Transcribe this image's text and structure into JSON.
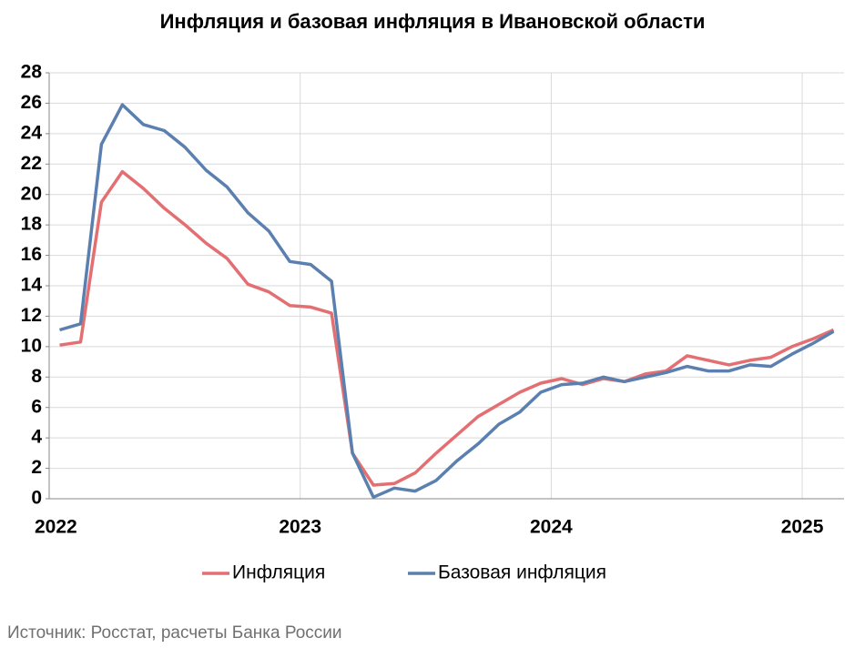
{
  "chart_data": {
    "type": "line",
    "title": "Инфляция и базовая инфляция в Ивановской области",
    "categories": [
      "2022",
      null,
      null,
      null,
      null,
      null,
      null,
      null,
      null,
      null,
      null,
      null,
      "2023",
      null,
      null,
      null,
      null,
      null,
      null,
      null,
      null,
      null,
      null,
      null,
      "2024",
      null,
      null,
      null,
      null,
      null,
      null,
      null,
      null,
      null,
      null,
      null,
      "2025",
      null
    ],
    "series": [
      {
        "name": "Инфляция",
        "color": "#e46f72",
        "values": [
          10.1,
          10.3,
          19.5,
          21.5,
          20.4,
          19.1,
          18.0,
          16.8,
          15.8,
          14.1,
          13.6,
          12.7,
          12.6,
          12.2,
          3.0,
          0.9,
          1.0,
          1.7,
          3.0,
          4.2,
          5.4,
          6.2,
          7.0,
          7.6,
          7.9,
          7.5,
          7.9,
          7.7,
          8.2,
          8.4,
          9.4,
          9.1,
          8.8,
          9.1,
          9.3,
          10.0,
          10.5,
          11.1
        ]
      },
      {
        "name": "Базовая инфляция",
        "color": "#5b80b0",
        "values": [
          11.1,
          11.5,
          23.3,
          25.9,
          24.6,
          24.2,
          23.1,
          21.6,
          20.5,
          18.8,
          17.6,
          15.6,
          15.4,
          14.3,
          3.0,
          0.1,
          0.7,
          0.5,
          1.2,
          2.5,
          3.6,
          4.9,
          5.7,
          7.0,
          7.5,
          7.6,
          8.0,
          7.7,
          8.0,
          8.3,
          8.7,
          8.4,
          8.4,
          8.8,
          8.7,
          9.5,
          10.2,
          11.0
        ]
      }
    ],
    "ylim": [
      0,
      28
    ],
    "yticks": [
      0,
      2,
      4,
      6,
      8,
      10,
      12,
      14,
      16,
      18,
      20,
      22,
      24,
      26,
      28
    ],
    "grid": true,
    "legend": "bottom",
    "source": "Источник: Росстат, расчеты Банка России"
  }
}
